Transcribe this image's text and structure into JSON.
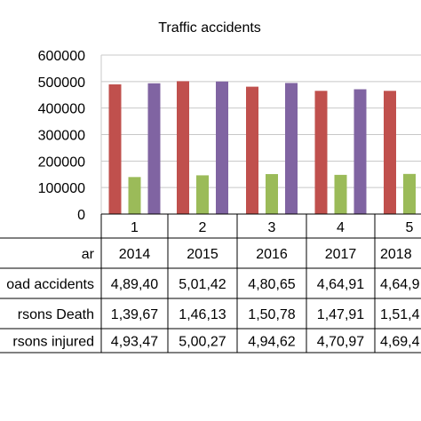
{
  "chart_data": {
    "type": "bar",
    "title": "Traffic accidents",
    "categories": [
      "1",
      "2",
      "3",
      "4",
      "5"
    ],
    "ylim": [
      0,
      600000
    ],
    "yticks": [
      "600000",
      "500000",
      "400000",
      "300000",
      "200000",
      "100000",
      "0"
    ],
    "grid": true,
    "legend": "none",
    "series": [
      {
        "color": "#c0504d",
        "values": [
          489400,
          501420,
          480650,
          464910,
          464910
        ]
      },
      {
        "color": "#9bbb59",
        "values": [
          139670,
          146130,
          150780,
          147910,
          151410
        ]
      },
      {
        "color": "#8064a2",
        "values": [
          493470,
          500270,
          494620,
          470970,
          469410
        ]
      }
    ],
    "table": {
      "row_labels": [
        "ar",
        "oad accidents",
        "rsons Death",
        "rsons injured"
      ],
      "rows": [
        [
          "2014",
          "2015",
          "2016",
          "2017",
          "2018"
        ],
        [
          "4,89,40",
          "5,01,42",
          "4,80,65",
          "4,64,91",
          "4,64,9"
        ],
        [
          "1,39,67",
          "1,46,13",
          "1,50,78",
          "1,47,91",
          "1,51,4"
        ],
        [
          "4,93,47",
          "5,00,27",
          "4,94,62",
          "4,70,97",
          "4,69,4"
        ]
      ]
    }
  }
}
